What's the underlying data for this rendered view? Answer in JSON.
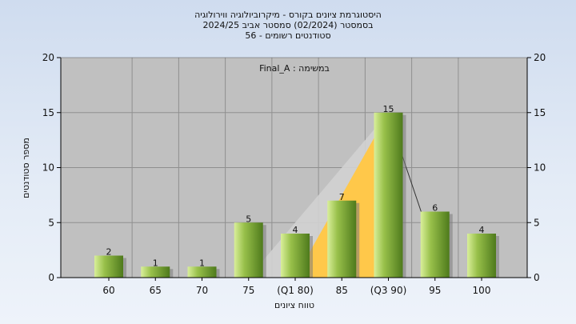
{
  "chart_data": {
    "type": "bar",
    "title_lines": [
      "היסטוגרמת ציונים בקורס - מיקרוביולוגיה ווירולוגיה",
      "בסמסטר  (02/2024)  סמסטר אביב 2024/25",
      "סטודנטים רשומים - 56"
    ],
    "annotation": "במשימה : Final_A",
    "categories": [
      "60",
      "65",
      "70",
      "75",
      "(Q1 80)",
      "85",
      "(Q3 90)",
      "95",
      "100"
    ],
    "values": [
      2,
      1,
      1,
      5,
      4,
      7,
      15,
      6,
      4
    ],
    "xlabel": "טווח ציונים",
    "ylabel": "מספר סטודנטים",
    "ylim": [
      0,
      20
    ],
    "yticks": [
      0,
      5,
      10,
      15,
      20
    ],
    "grid": true,
    "colors": {
      "bar_light": "#d9ef9a",
      "bar_mid": "#98c04a",
      "bar_dark": "#4e7a1c",
      "plot_bg": "#c0c0c0",
      "grid": "#8f8f8f",
      "quartile_fill": "#ffc84a",
      "shadow_fill": "#d2d2d2"
    }
  }
}
